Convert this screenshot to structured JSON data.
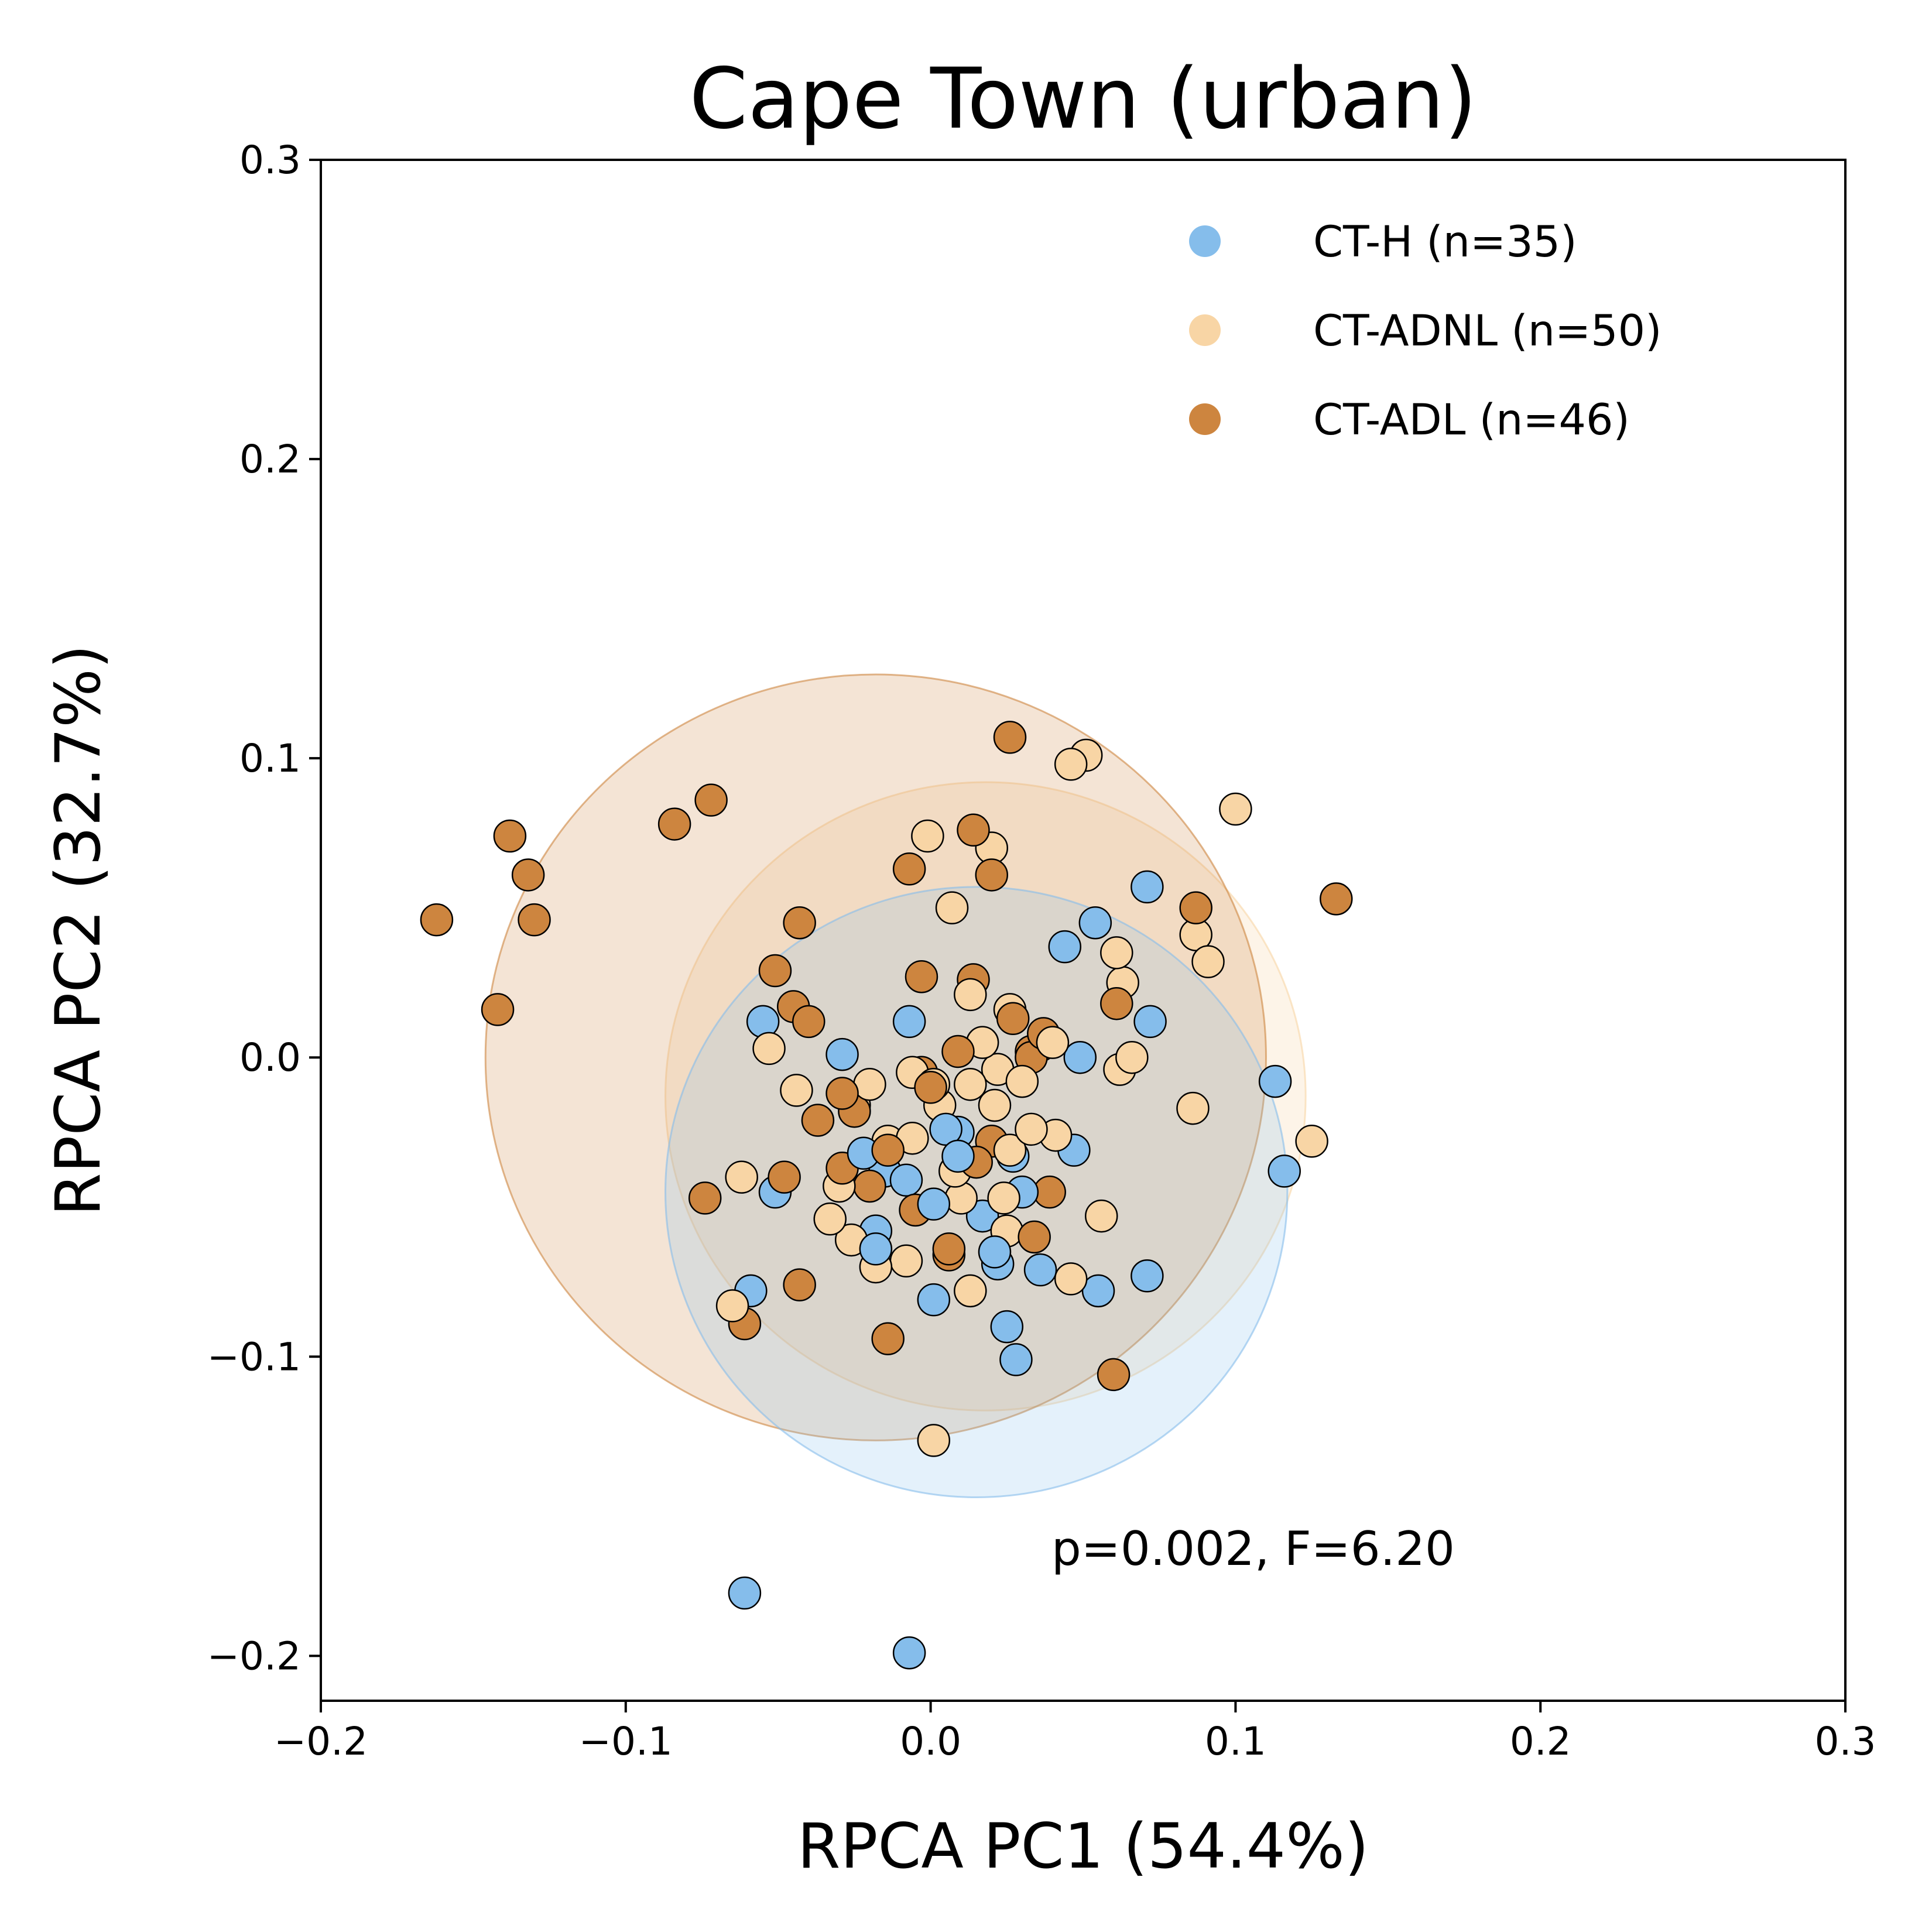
{
  "chart_data": {
    "type": "scatter",
    "title": "Cape Town (urban)",
    "xlabel": "RPCA PC1 (54.4%)",
    "ylabel": "RPCA PC2 (32.7%)",
    "xlim": [
      -0.2,
      0.3
    ],
    "ylim": [
      -0.215,
      0.3
    ],
    "xticks": [
      "−0.2",
      "−0.1",
      "0.0",
      "0.1",
      "0.2",
      "0.3"
    ],
    "yticks": [
      "−0.2",
      "−0.1",
      "0.0",
      "0.1",
      "0.2",
      "0.3"
    ],
    "grid": false,
    "legend_position": "top-right",
    "annotation": "p=0.002, F=6.20",
    "series": [
      {
        "name": "CT-H (n=35)",
        "color": "#85BDEB",
        "ellipse": {
          "center": [
            0.015,
            -0.045
          ],
          "radius": 0.102
        },
        "points": [
          [
            -0.055,
            0.012
          ],
          [
            -0.051,
            -0.045
          ],
          [
            -0.059,
            -0.078
          ],
          [
            -0.029,
            0.001
          ],
          [
            -0.022,
            -0.032
          ],
          [
            -0.018,
            -0.058
          ],
          [
            -0.018,
            -0.064
          ],
          [
            -0.008,
            -0.041
          ],
          [
            -0.007,
            0.012
          ],
          [
            0.001,
            -0.049
          ],
          [
            0.001,
            -0.081
          ],
          [
            0.009,
            -0.025
          ],
          [
            0.009,
            -0.033
          ],
          [
            0.017,
            -0.053
          ],
          [
            0.021,
            -0.065
          ],
          [
            0.022,
            -0.069
          ],
          [
            0.025,
            -0.09
          ],
          [
            0.027,
            -0.033
          ],
          [
            0.028,
            -0.101
          ],
          [
            0.036,
            -0.071
          ],
          [
            0.044,
            0.037
          ],
          [
            0.047,
            -0.031
          ],
          [
            0.049,
            0.0
          ],
          [
            0.054,
            0.045
          ],
          [
            0.055,
            -0.078
          ],
          [
            0.071,
            0.057
          ],
          [
            0.072,
            0.012
          ],
          [
            0.071,
            -0.073
          ],
          [
            0.113,
            -0.008
          ],
          [
            0.116,
            -0.038
          ],
          [
            -0.061,
            -0.179
          ],
          [
            -0.007,
            -0.199
          ],
          [
            0.005,
            -0.024
          ],
          [
            -0.015,
            -0.038
          ],
          [
            0.03,
            -0.045
          ]
        ]
      },
      {
        "name": "CT-ADNL (n=50)",
        "color": "#F8D5A5",
        "ellipse": {
          "center": [
            0.018,
            -0.013
          ],
          "radius": 0.105
        },
        "points": [
          [
            -0.053,
            0.003
          ],
          [
            -0.062,
            -0.04
          ],
          [
            -0.065,
            -0.083
          ],
          [
            -0.044,
            -0.011
          ],
          [
            -0.033,
            -0.054
          ],
          [
            -0.026,
            -0.061
          ],
          [
            -0.025,
            -0.016
          ],
          [
            -0.02,
            -0.009
          ],
          [
            -0.018,
            -0.07
          ],
          [
            -0.008,
            -0.068
          ],
          [
            -0.006,
            -0.027
          ],
          [
            -0.006,
            -0.005
          ],
          [
            -0.001,
            0.074
          ],
          [
            0.001,
            -0.009
          ],
          [
            0.003,
            -0.016
          ],
          [
            0.007,
            0.05
          ],
          [
            0.01,
            -0.047
          ],
          [
            0.013,
            -0.078
          ],
          [
            0.013,
            0.021
          ],
          [
            0.013,
            -0.009
          ],
          [
            0.02,
            0.07
          ],
          [
            0.021,
            -0.016
          ],
          [
            0.022,
            -0.004
          ],
          [
            0.024,
            -0.047
          ],
          [
            0.025,
            -0.058
          ],
          [
            0.026,
            0.016
          ],
          [
            0.026,
            -0.031
          ],
          [
            0.03,
            -0.008
          ],
          [
            0.036,
            0.004
          ],
          [
            0.041,
            -0.026
          ],
          [
            0.046,
            0.098
          ],
          [
            0.051,
            0.101
          ],
          [
            0.046,
            -0.074
          ],
          [
            0.056,
            -0.053
          ],
          [
            0.061,
            0.035
          ],
          [
            0.062,
            -0.004
          ],
          [
            0.063,
            0.025
          ],
          [
            0.066,
            0.0
          ],
          [
            0.086,
            -0.017
          ],
          [
            0.087,
            0.041
          ],
          [
            0.091,
            0.032
          ],
          [
            0.1,
            0.083
          ],
          [
            0.125,
            -0.028
          ],
          [
            0.001,
            -0.128
          ],
          [
            -0.03,
            -0.043
          ],
          [
            0.033,
            -0.024
          ],
          [
            0.017,
            0.005
          ],
          [
            -0.014,
            -0.028
          ],
          [
            0.04,
            0.005
          ],
          [
            0.008,
            -0.038
          ]
        ]
      },
      {
        "name": "CT-ADL (n=46)",
        "color": "#CD853F",
        "ellipse": {
          "center": [
            -0.018,
            0.0
          ],
          "radius": 0.128
        },
        "points": [
          [
            -0.162,
            0.046
          ],
          [
            -0.138,
            0.074
          ],
          [
            -0.132,
            0.061
          ],
          [
            -0.13,
            0.046
          ],
          [
            -0.142,
            0.016
          ],
          [
            -0.084,
            0.078
          ],
          [
            -0.072,
            0.086
          ],
          [
            -0.074,
            -0.047
          ],
          [
            -0.051,
            0.029
          ],
          [
            -0.045,
            0.017
          ],
          [
            -0.043,
            0.045
          ],
          [
            -0.04,
            0.012
          ],
          [
            -0.037,
            -0.021
          ],
          [
            -0.048,
            -0.04
          ],
          [
            -0.043,
            -0.076
          ],
          [
            -0.061,
            -0.089
          ],
          [
            -0.029,
            -0.012
          ],
          [
            -0.029,
            -0.037
          ],
          [
            -0.02,
            -0.043
          ],
          [
            -0.014,
            -0.031
          ],
          [
            -0.014,
            -0.094
          ],
          [
            -0.007,
            0.063
          ],
          [
            -0.003,
            0.027
          ],
          [
            -0.003,
            -0.005
          ],
          [
            0.0,
            -0.01
          ],
          [
            -0.005,
            -0.051
          ],
          [
            0.006,
            -0.066
          ],
          [
            0.009,
            0.002
          ],
          [
            0.014,
            0.076
          ],
          [
            0.014,
            0.026
          ],
          [
            0.02,
            0.061
          ],
          [
            0.02,
            -0.028
          ],
          [
            0.026,
            0.107
          ],
          [
            0.027,
            0.013
          ],
          [
            0.033,
            0.002
          ],
          [
            0.034,
            -0.06
          ],
          [
            0.037,
            0.008
          ],
          [
            0.039,
            -0.045
          ],
          [
            0.061,
            0.018
          ],
          [
            0.087,
            0.05
          ],
          [
            0.133,
            0.053
          ],
          [
            0.06,
            -0.106
          ],
          [
            0.033,
            0.0
          ],
          [
            0.006,
            -0.064
          ],
          [
            0.015,
            -0.035
          ],
          [
            -0.025,
            -0.018
          ]
        ]
      }
    ]
  }
}
